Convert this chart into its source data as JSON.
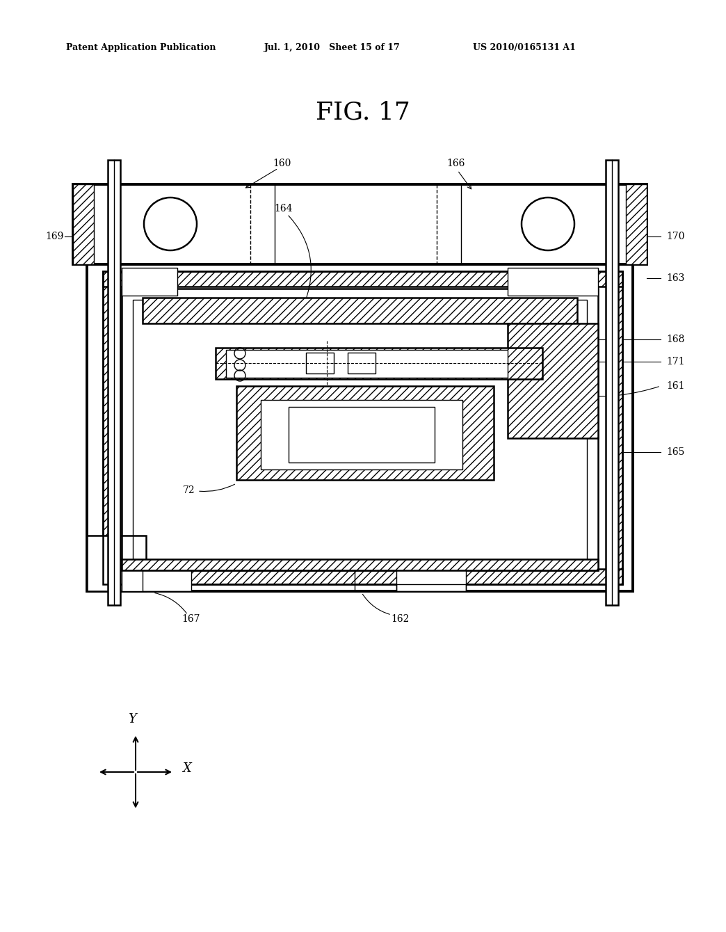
{
  "title": "FIG. 17",
  "header_left": "Patent Application Publication",
  "header_mid": "Jul. 1, 2010   Sheet 15 of 17",
  "header_right": "US 2010/0165131 A1",
  "bg_color": "#ffffff",
  "line_color": "#000000"
}
